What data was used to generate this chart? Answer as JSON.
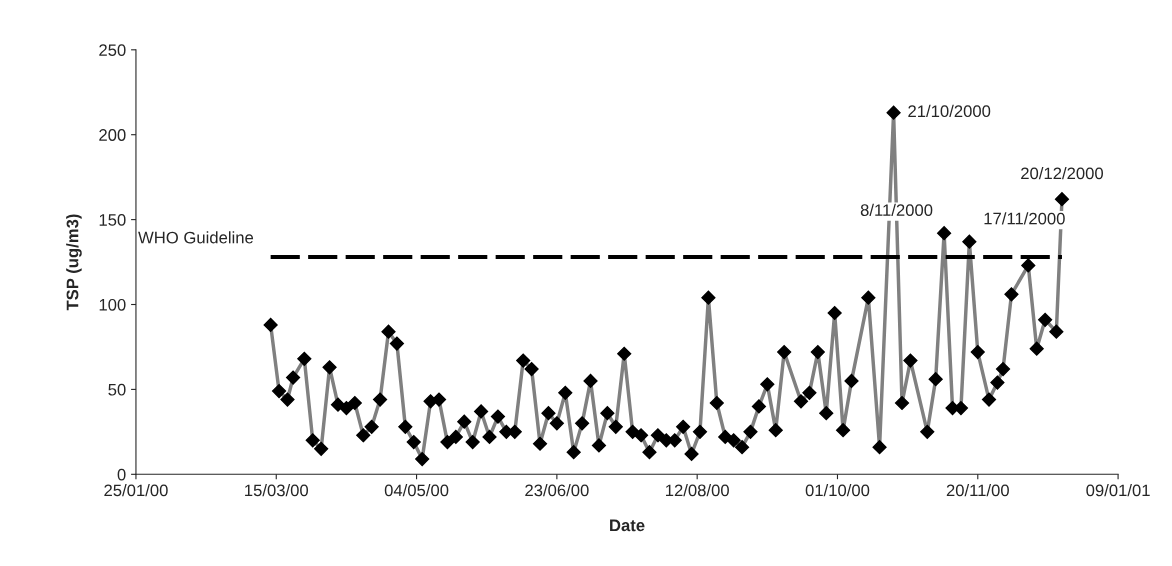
{
  "chart_data": {
    "type": "line",
    "xlabel": "Date",
    "ylabel": "TSP (ug/m3)",
    "xlim": [
      "2000-01-25",
      "2001-01-09"
    ],
    "xticks": [
      {
        "value": "2000-01-25",
        "label": "25/01/00"
      },
      {
        "value": "2000-03-15",
        "label": "15/03/00"
      },
      {
        "value": "2000-05-04",
        "label": "04/05/00"
      },
      {
        "value": "2000-06-23",
        "label": "23/06/00"
      },
      {
        "value": "2000-08-12",
        "label": "12/08/00"
      },
      {
        "value": "2000-10-01",
        "label": "01/10/00"
      },
      {
        "value": "2000-11-20",
        "label": "20/11/00"
      },
      {
        "value": "2001-01-09",
        "label": "09/01/01"
      }
    ],
    "ylim": [
      0,
      250
    ],
    "yticks": [
      0,
      50,
      100,
      150,
      200,
      250
    ],
    "grid": false,
    "legend": false,
    "series": [
      {
        "color": "#808080",
        "marker": "diamond",
        "line_style": "solid",
        "x": [
          "2000-03-13",
          "2000-03-16",
          "2000-03-19",
          "2000-03-21",
          "2000-03-25",
          "2000-03-28",
          "2000-03-31",
          "2000-04-03",
          "2000-04-06",
          "2000-04-09",
          "2000-04-12",
          "2000-04-15",
          "2000-04-18",
          "2000-04-21",
          "2000-04-24",
          "2000-04-27",
          "2000-04-30",
          "2000-05-03",
          "2000-05-06",
          "2000-05-09",
          "2000-05-12",
          "2000-05-15",
          "2000-05-18",
          "2000-05-21",
          "2000-05-24",
          "2000-05-27",
          "2000-05-30",
          "2000-06-02",
          "2000-06-05",
          "2000-06-08",
          "2000-06-11",
          "2000-06-14",
          "2000-06-17",
          "2000-06-20",
          "2000-06-23",
          "2000-06-26",
          "2000-06-29",
          "2000-07-02",
          "2000-07-05",
          "2000-07-08",
          "2000-07-11",
          "2000-07-14",
          "2000-07-17",
          "2000-07-20",
          "2000-07-23",
          "2000-07-26",
          "2000-07-29",
          "2000-08-01",
          "2000-08-04",
          "2000-08-07",
          "2000-08-10",
          "2000-08-13",
          "2000-08-16",
          "2000-08-19",
          "2000-08-22",
          "2000-08-25",
          "2000-08-28",
          "2000-08-31",
          "2000-09-03",
          "2000-09-06",
          "2000-09-09",
          "2000-09-12",
          "2000-09-18",
          "2000-09-21",
          "2000-09-24",
          "2000-09-27",
          "2000-09-30",
          "2000-10-03",
          "2000-10-06",
          "2000-10-12",
          "2000-10-16",
          "2000-10-21",
          "2000-10-24",
          "2000-10-27",
          "2000-11-02",
          "2000-11-05",
          "2000-11-08",
          "2000-11-11",
          "2000-11-14",
          "2000-11-17",
          "2000-11-20",
          "2000-11-24",
          "2000-11-27",
          "2000-11-29",
          "2000-12-02",
          "2000-12-08",
          "2000-12-11",
          "2000-12-14",
          "2000-12-18",
          "2000-12-20"
        ],
        "values": [
          88,
          49,
          44,
          57,
          68,
          20,
          15,
          63,
          41,
          39,
          42,
          23,
          28,
          44,
          84,
          77,
          28,
          19,
          9,
          43,
          44,
          19,
          22,
          31,
          19,
          37,
          22,
          34,
          25,
          25,
          67,
          62,
          18,
          36,
          30,
          48,
          13,
          30,
          55,
          17,
          36,
          28,
          71,
          25,
          23,
          13,
          23,
          20,
          20,
          28,
          12,
          25,
          104,
          42,
          22,
          20,
          16,
          25,
          40,
          53,
          26,
          72,
          43,
          48,
          72,
          36,
          95,
          26,
          55,
          104,
          16,
          213,
          42,
          67,
          25,
          56,
          142,
          39,
          39,
          137,
          72,
          44,
          54,
          62,
          106,
          123,
          74,
          91,
          84,
          162
        ]
      },
      {
        "name": "WHO Guideline",
        "color": "#000000",
        "marker": "none",
        "line_style": "dashed",
        "x": [
          "2000-03-13",
          "2000-12-20"
        ],
        "values": [
          128,
          128
        ]
      }
    ],
    "annotations": [
      {
        "text": "21/10/2000",
        "x": "2000-10-21",
        "y": 213
      },
      {
        "text": "8/11/2000",
        "x": "2000-11-08",
        "y": 142
      },
      {
        "text": "17/11/2000",
        "x": "2000-11-17",
        "y": 137
      },
      {
        "text": "20/12/2000",
        "x": "2000-12-20",
        "y": 162
      }
    ]
  }
}
